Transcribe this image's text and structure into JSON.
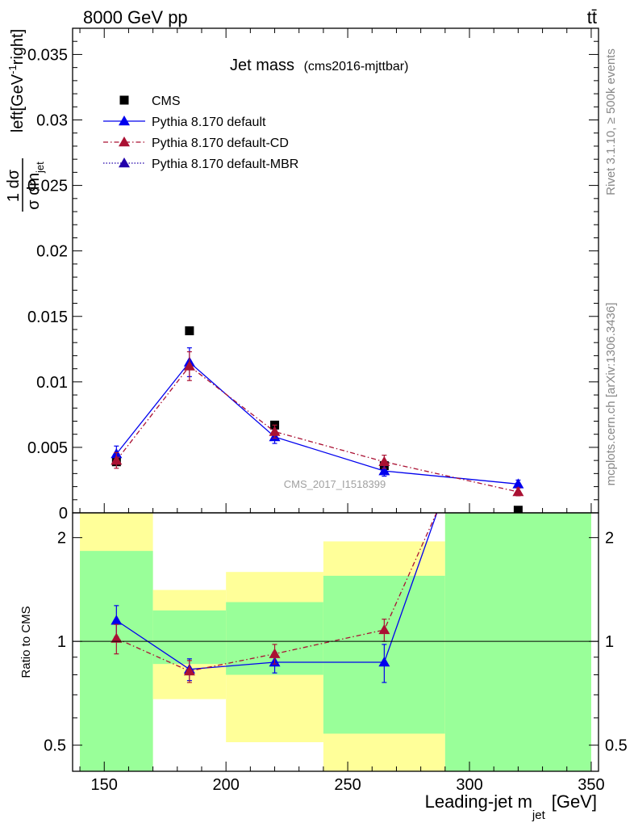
{
  "header": {
    "energy_label": "8000 GeV pp",
    "process_label": "tt̄"
  },
  "side_labels": {
    "rivet": "Rivet 3.1.10, ≥ 500k events",
    "mcplots": "mcplots.cern.ch [arXiv:1306.3436]"
  },
  "watermark": "CMS_2017_I1518399",
  "chart_data": {
    "type": "line",
    "title": "Jet mass",
    "subtitle": "(cms2016-mjttbar)",
    "xlabel": "Leading-jet m",
    "xlabel_sub": "jet",
    "xlabel_unit": "[GeV]",
    "xlim": [
      137,
      353
    ],
    "xticks": [
      150,
      200,
      250,
      300,
      350
    ],
    "main": {
      "ylabel_fraction_top": "1 dσ",
      "ylabel_fraction_bottom": "σ dm",
      "ylabel_fraction_sub": "jet",
      "ylabel_unit": "left[GeV",
      "ylabel_unit_sup": "-1",
      "ylabel_unit_end": "right]",
      "ylim": [
        0,
        0.037
      ],
      "yticks": [
        0,
        0.005,
        0.01,
        0.015,
        0.02,
        0.025,
        0.03,
        0.035
      ],
      "ytick_labels": [
        "0",
        "0.005",
        "0.01",
        "0.015",
        "0.02",
        "0.025",
        "0.03",
        "0.035"
      ],
      "bins": [
        [
          140,
          170
        ],
        [
          170,
          200
        ],
        [
          200,
          240
        ],
        [
          240,
          290
        ],
        [
          290,
          350
        ]
      ],
      "series": [
        {
          "name": "CMS",
          "color": "#000000",
          "marker": "square",
          "x": [
            155,
            185,
            220,
            265,
            320
          ],
          "y": [
            0.0039,
            0.0139,
            0.0067,
            0.0036,
            0.0002
          ]
        },
        {
          "name": "Pythia 8.170 default",
          "color": "#0000ee",
          "marker": "triangle",
          "dash": "",
          "x": [
            155,
            185,
            220,
            265,
            320
          ],
          "y": [
            0.0045,
            0.0115,
            0.0058,
            0.0032,
            0.0022
          ],
          "err": [
            0.0006,
            0.0011,
            0.0005,
            0.0004,
            0.0003
          ]
        },
        {
          "name": "Pythia 8.170 default-CD",
          "color": "#aa1133",
          "marker": "triangle",
          "dash": "6,3,1.5,3",
          "x": [
            155,
            185,
            220,
            265,
            320
          ],
          "y": [
            0.004,
            0.0112,
            0.0062,
            0.0039,
            0.0016
          ],
          "err": [
            0.0006,
            0.0011,
            0.0005,
            0.0005,
            0.0003
          ]
        },
        {
          "name": "Pythia 8.170 default-MBR",
          "color": "#2200aa",
          "marker": "triangle",
          "dash": "1.5,2",
          "x": [],
          "y": []
        }
      ]
    },
    "ratio": {
      "ylabel": "Ratio to CMS",
      "ylim": [
        0.42,
        2.36
      ],
      "log": true,
      "yticks": [
        0.5,
        1,
        2
      ],
      "ytick_labels": [
        "0.5",
        "1",
        "2"
      ],
      "bands": [
        {
          "x0": 140,
          "x1": 170,
          "yellow": [
            0.42,
            2.4
          ],
          "green": [
            0.42,
            1.83
          ]
        },
        {
          "x0": 170,
          "x1": 200,
          "yellow": [
            0.68,
            1.41
          ],
          "green": [
            0.86,
            1.23
          ]
        },
        {
          "x0": 200,
          "x1": 240,
          "yellow": [
            0.51,
            1.59
          ],
          "green": [
            0.8,
            1.3
          ]
        },
        {
          "x0": 240,
          "x1": 290,
          "yellow": [
            0.42,
            1.95
          ],
          "green": [
            0.54,
            1.55
          ]
        },
        {
          "x0": 290,
          "x1": 350,
          "yellow": [
            0.42,
            2.4
          ],
          "green": [
            0.42,
            2.4
          ]
        }
      ],
      "series": [
        {
          "name": "Pythia 8.170 default",
          "color": "#0000ee",
          "dash": "",
          "x": [
            155,
            185,
            220,
            265,
            320
          ],
          "y": [
            1.15,
            0.83,
            0.87,
            0.87,
            11
          ],
          "err": [
            0.12,
            0.06,
            0.06,
            0.11,
            0
          ]
        },
        {
          "name": "Pythia 8.170 default-CD",
          "color": "#aa1133",
          "dash": "6,3,1.5,3",
          "x": [
            155,
            185,
            220,
            265,
            320
          ],
          "y": [
            1.02,
            0.82,
            0.92,
            1.08,
            8
          ],
          "err": [
            0.1,
            0.06,
            0.06,
            0.08,
            0
          ]
        }
      ]
    }
  }
}
